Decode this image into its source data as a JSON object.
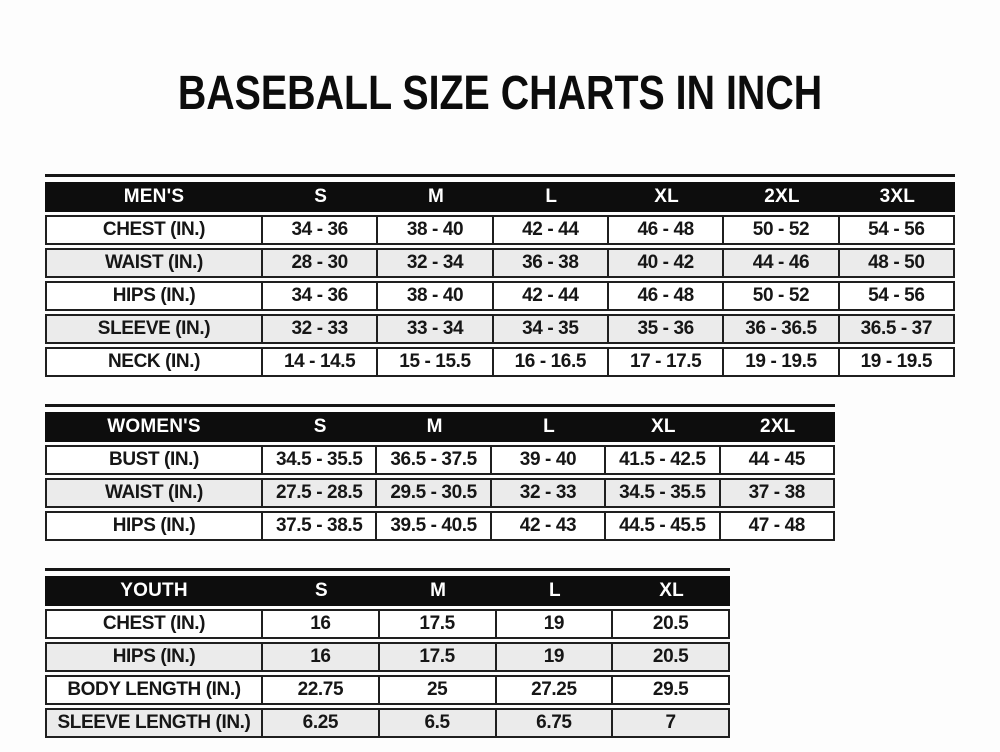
{
  "page": {
    "title": "BASEBALL SIZE CHARTS IN INCH"
  },
  "colors": {
    "header_bg": "#0d0d0d",
    "header_text": "#ffffff",
    "row_stripe": "#ebebeb",
    "grid_border": "#1f1f1f",
    "text": "#161616"
  },
  "tables": {
    "mens": {
      "name": "mens",
      "header": [
        "MEN'S",
        "S",
        "M",
        "L",
        "XL",
        "2XL",
        "3XL"
      ],
      "rows": [
        {
          "label": "CHEST (IN.)",
          "values": [
            "34 - 36",
            "38 - 40",
            "42 - 44",
            "46 - 48",
            "50 - 52",
            "54 - 56"
          ]
        },
        {
          "label": "WAIST (IN.)",
          "values": [
            "28 - 30",
            "32 - 34",
            "36 - 38",
            "40 - 42",
            "44 - 46",
            "48 - 50"
          ]
        },
        {
          "label": "HIPS (IN.)",
          "values": [
            "34 - 36",
            "38 - 40",
            "42 - 44",
            "46 - 48",
            "50 - 52",
            "54 - 56"
          ]
        },
        {
          "label": "SLEEVE (IN.)",
          "values": [
            "32 - 33",
            "33 - 34",
            "34 - 35",
            "35 - 36",
            "36 - 36.5",
            "36.5 - 37"
          ]
        },
        {
          "label": "NECK (IN.)",
          "values": [
            "14 - 14.5",
            "15 - 15.5",
            "16 - 16.5",
            "17 - 17.5",
            "19 - 19.5",
            "19 - 19.5"
          ]
        }
      ]
    },
    "womens": {
      "name": "womens",
      "header": [
        "WOMEN'S",
        "S",
        "M",
        "L",
        "XL",
        "2XL"
      ],
      "rows": [
        {
          "label": "BUST (IN.)",
          "values": [
            "34.5 - 35.5",
            "36.5 - 37.5",
            "39 - 40",
            "41.5 - 42.5",
            "44 - 45"
          ]
        },
        {
          "label": "WAIST (IN.)",
          "values": [
            "27.5 - 28.5",
            "29.5 - 30.5",
            "32 - 33",
            "34.5 - 35.5",
            "37 - 38"
          ]
        },
        {
          "label": "HIPS (IN.)",
          "values": [
            "37.5 - 38.5",
            "39.5 - 40.5",
            "42 - 43",
            "44.5 - 45.5",
            "47 - 48"
          ]
        }
      ]
    },
    "youth": {
      "name": "youth",
      "header": [
        "YOUTH",
        "S",
        "M",
        "L",
        "XL"
      ],
      "rows": [
        {
          "label": "CHEST (IN.)",
          "values": [
            "16",
            "17.5",
            "19",
            "20.5"
          ]
        },
        {
          "label": "HIPS (IN.)",
          "values": [
            "16",
            "17.5",
            "19",
            "20.5"
          ]
        },
        {
          "label": "BODY LENGTH (IN.)",
          "values": [
            "22.75",
            "25",
            "27.25",
            "29.5"
          ]
        },
        {
          "label": "SLEEVE LENGTH (IN.)",
          "values": [
            "6.25",
            "6.5",
            "6.75",
            "7"
          ]
        }
      ]
    }
  }
}
